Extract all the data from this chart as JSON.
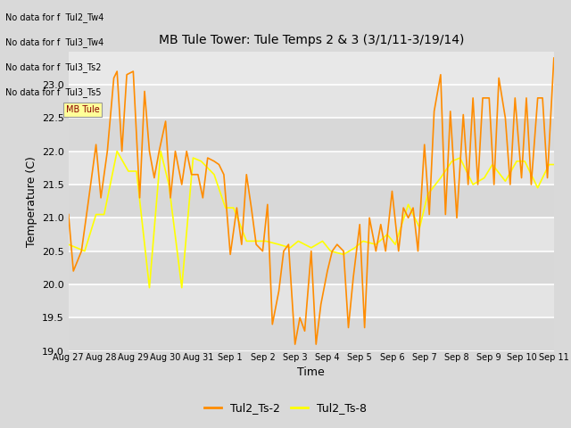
{
  "title": "MB Tule Tower: Tule Temps 2 & 3 (3/1/11-3/19/14)",
  "xlabel": "Time",
  "ylabel": "Temperature (C)",
  "ylim": [
    19.0,
    23.5
  ],
  "yticks": [
    19.0,
    19.5,
    20.0,
    20.5,
    21.0,
    21.5,
    22.0,
    22.5,
    23.0
  ],
  "color_ts2": "#FF8C00",
  "color_ts8": "#FFFF00",
  "bg_outer": "#d9d9d9",
  "bg_plot": "#e8e8e8",
  "legend_labels": [
    "Tul2_Ts-2",
    "Tul2_Ts-8"
  ],
  "no_data_texts": [
    "No data for f  Tul2_Tw4",
    "No data for f  Tul3_Tw4",
    "No data for f  Tul3_Ts2",
    "No data for f  Tul3_Ts5"
  ],
  "x_tick_labels": [
    "Aug 27",
    "Aug 28",
    "Aug 29",
    "Aug 30",
    "Aug 31",
    "Sep 1",
    "Sep 2",
    "Sep 3",
    "Sep 4",
    "Sep 5",
    "Sep 6",
    "Sep 7",
    "Sep 8",
    "Sep 9",
    "Sep 10",
    "Sep 11"
  ],
  "ts2_x": [
    0,
    0.15,
    0.4,
    0.6,
    0.85,
    1.0,
    1.2,
    1.4,
    1.5,
    1.65,
    1.8,
    2.0,
    2.2,
    2.35,
    2.5,
    2.65,
    2.8,
    3.0,
    3.15,
    3.3,
    3.5,
    3.65,
    3.8,
    4.0,
    4.15,
    4.3,
    4.5,
    4.65,
    4.8,
    5.0,
    5.2,
    5.35,
    5.5,
    5.65,
    5.8,
    6.0,
    6.15,
    6.3,
    6.5,
    6.65,
    6.8,
    7.0,
    7.15,
    7.3,
    7.5,
    7.65,
    7.8,
    8.0,
    8.15,
    8.3,
    8.5,
    8.65,
    8.8,
    9.0,
    9.15,
    9.3,
    9.5,
    9.65,
    9.8,
    10.0,
    10.2,
    10.35,
    10.5,
    10.65,
    10.8,
    11.0,
    11.15,
    11.3,
    11.5,
    11.65,
    11.8,
    12.0,
    12.2,
    12.35,
    12.5,
    12.65,
    12.8,
    13.0,
    13.15,
    13.3,
    13.5,
    13.65,
    13.8,
    14.0,
    14.15,
    14.3,
    14.5,
    14.65,
    14.8,
    15.0
  ],
  "ts2_y": [
    21.05,
    20.2,
    20.5,
    21.2,
    22.1,
    21.3,
    22.0,
    23.1,
    23.2,
    22.0,
    23.15,
    23.2,
    21.3,
    22.9,
    22.0,
    21.6,
    22.0,
    22.45,
    21.3,
    22.0,
    21.5,
    22.0,
    21.65,
    21.65,
    21.3,
    21.9,
    21.85,
    21.8,
    21.65,
    20.45,
    21.15,
    20.6,
    21.65,
    21.15,
    20.6,
    20.5,
    21.2,
    19.4,
    19.9,
    20.5,
    20.6,
    19.1,
    19.5,
    19.3,
    20.5,
    19.1,
    19.7,
    20.2,
    20.5,
    20.6,
    20.5,
    19.35,
    20.1,
    20.9,
    19.35,
    21.0,
    20.5,
    20.9,
    20.5,
    21.4,
    20.5,
    21.15,
    21.0,
    21.15,
    20.5,
    22.1,
    21.05,
    22.6,
    23.15,
    21.05,
    22.6,
    21.0,
    22.55,
    21.5,
    22.8,
    21.5,
    22.8,
    22.8,
    21.5,
    23.1,
    22.5,
    21.5,
    22.8,
    21.6,
    22.8,
    21.5,
    22.8,
    22.8,
    21.6,
    23.4
  ],
  "ts8_x": [
    0,
    0.5,
    0.85,
    1.1,
    1.5,
    1.85,
    2.1,
    2.5,
    2.85,
    3.1,
    3.5,
    3.85,
    4.1,
    4.5,
    4.85,
    5.1,
    5.5,
    5.85,
    6.1,
    6.5,
    6.85,
    7.1,
    7.5,
    7.85,
    8.1,
    8.5,
    8.85,
    9.1,
    9.5,
    9.85,
    10.1,
    10.5,
    10.85,
    11.1,
    11.5,
    11.85,
    12.1,
    12.5,
    12.85,
    13.1,
    13.5,
    13.85,
    14.1,
    14.5,
    14.85,
    15.0
  ],
  "ts8_y": [
    20.6,
    20.5,
    21.05,
    21.05,
    22.0,
    21.7,
    21.7,
    19.95,
    22.0,
    21.5,
    19.95,
    21.9,
    21.85,
    21.65,
    21.15,
    21.15,
    20.65,
    20.65,
    20.65,
    20.6,
    20.55,
    20.65,
    20.55,
    20.65,
    20.5,
    20.45,
    20.55,
    20.65,
    20.6,
    20.75,
    20.6,
    21.2,
    20.85,
    21.35,
    21.6,
    21.85,
    21.9,
    21.5,
    21.6,
    21.8,
    21.55,
    21.85,
    21.85,
    21.45,
    21.8,
    21.8
  ]
}
